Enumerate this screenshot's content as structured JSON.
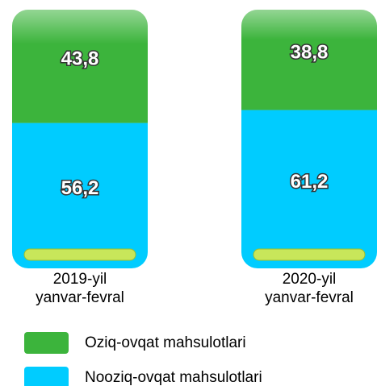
{
  "chart_data": {
    "type": "stacked_bar",
    "categories": [
      "2019-yil\nyanvar-fevral",
      "2020-yil\nyanvar-fevral"
    ],
    "series": [
      {
        "name": "Oziq-ovqat mahsulotlari",
        "color": "#3cb43c",
        "values": [
          43.8,
          38.8
        ],
        "value_labels": [
          "43,8",
          "38,8"
        ]
      },
      {
        "name": "Nooziq-ovqat mahsulotlari",
        "color": "#00ccff",
        "values": [
          56.2,
          61.2
        ],
        "value_labels": [
          "56,2",
          "61,2"
        ]
      }
    ],
    "ylim": [
      0,
      100
    ],
    "legend": "bottom"
  }
}
